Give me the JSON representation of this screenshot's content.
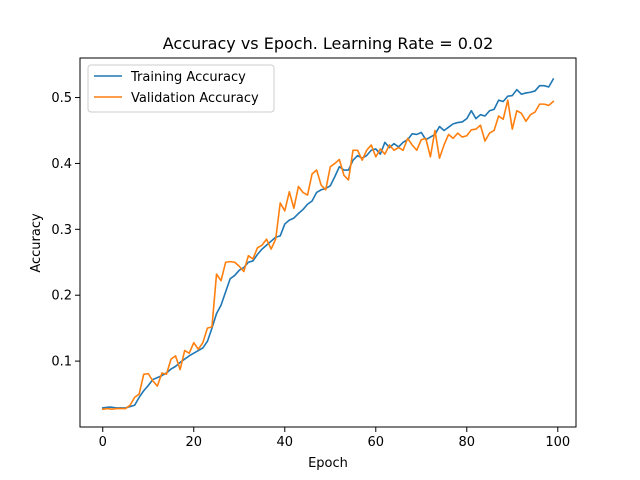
{
  "chart_data": {
    "type": "line",
    "title": "Accuracy vs Epoch. Learning Rate = 0.02",
    "xlabel": "Epoch",
    "ylabel": "Accuracy",
    "xlim": [
      -5,
      104
    ],
    "ylim": [
      0.0,
      0.56
    ],
    "xticks": [
      0,
      20,
      40,
      60,
      80,
      100
    ],
    "xtick_labels": [
      "0",
      "20",
      "40",
      "60",
      "80",
      "100"
    ],
    "yticks": [
      0.1,
      0.2,
      0.3,
      0.4,
      0.5
    ],
    "ytick_labels": [
      "0.1",
      "0.2",
      "0.3",
      "0.4",
      "0.5"
    ],
    "grid": false,
    "legend_position": "top-left",
    "x": [
      0,
      1,
      2,
      3,
      4,
      5,
      6,
      7,
      8,
      9,
      10,
      11,
      12,
      13,
      14,
      15,
      16,
      17,
      18,
      19,
      20,
      21,
      22,
      23,
      24,
      25,
      26,
      27,
      28,
      29,
      30,
      31,
      32,
      33,
      34,
      35,
      36,
      37,
      38,
      39,
      40,
      41,
      42,
      43,
      44,
      45,
      46,
      47,
      48,
      49,
      50,
      51,
      52,
      53,
      54,
      55,
      56,
      57,
      58,
      59,
      60,
      61,
      62,
      63,
      64,
      65,
      66,
      67,
      68,
      69,
      70,
      71,
      72,
      73,
      74,
      75,
      76,
      77,
      78,
      79,
      80,
      81,
      82,
      83,
      84,
      85,
      86,
      87,
      88,
      89,
      90,
      91,
      92,
      93,
      94,
      95,
      96,
      97,
      98,
      99
    ],
    "series": [
      {
        "name": "Training Accuracy",
        "color": "#1f77b4",
        "values": [
          0.029,
          0.03,
          0.03,
          0.029,
          0.029,
          0.029,
          0.031,
          0.033,
          0.045,
          0.055,
          0.063,
          0.072,
          0.075,
          0.078,
          0.082,
          0.088,
          0.092,
          0.098,
          0.103,
          0.108,
          0.112,
          0.116,
          0.12,
          0.13,
          0.15,
          0.172,
          0.185,
          0.205,
          0.225,
          0.23,
          0.238,
          0.242,
          0.25,
          0.252,
          0.262,
          0.27,
          0.276,
          0.282,
          0.288,
          0.29,
          0.308,
          0.314,
          0.317,
          0.324,
          0.33,
          0.338,
          0.343,
          0.356,
          0.36,
          0.362,
          0.366,
          0.38,
          0.395,
          0.39,
          0.39,
          0.405,
          0.412,
          0.408,
          0.412,
          0.42,
          0.422,
          0.414,
          0.432,
          0.424,
          0.43,
          0.425,
          0.432,
          0.436,
          0.445,
          0.444,
          0.447,
          0.436,
          0.44,
          0.444,
          0.456,
          0.45,
          0.455,
          0.46,
          0.462,
          0.463,
          0.468,
          0.48,
          0.468,
          0.474,
          0.472,
          0.48,
          0.482,
          0.496,
          0.494,
          0.502,
          0.503,
          0.512,
          0.505,
          0.507,
          0.508,
          0.51,
          0.518,
          0.518,
          0.516,
          0.528
        ]
      },
      {
        "name": "Validation Accuracy",
        "color": "#ff7f0e",
        "values": [
          0.027,
          0.028,
          0.027,
          0.028,
          0.028,
          0.028,
          0.033,
          0.045,
          0.05,
          0.08,
          0.081,
          0.07,
          0.062,
          0.082,
          0.08,
          0.103,
          0.108,
          0.087,
          0.116,
          0.112,
          0.128,
          0.118,
          0.128,
          0.15,
          0.152,
          0.232,
          0.222,
          0.25,
          0.251,
          0.25,
          0.244,
          0.236,
          0.26,
          0.255,
          0.272,
          0.276,
          0.285,
          0.27,
          0.285,
          0.34,
          0.328,
          0.357,
          0.332,
          0.365,
          0.356,
          0.352,
          0.384,
          0.39,
          0.367,
          0.36,
          0.395,
          0.4,
          0.406,
          0.382,
          0.375,
          0.42,
          0.42,
          0.405,
          0.42,
          0.428,
          0.41,
          0.422,
          0.414,
          0.428,
          0.42,
          0.424,
          0.42,
          0.438,
          0.428,
          0.42,
          0.436,
          0.438,
          0.41,
          0.45,
          0.408,
          0.428,
          0.444,
          0.438,
          0.446,
          0.44,
          0.442,
          0.451,
          0.452,
          0.458,
          0.434,
          0.446,
          0.45,
          0.472,
          0.467,
          0.496,
          0.452,
          0.48,
          0.476,
          0.464,
          0.474,
          0.478,
          0.49,
          0.49,
          0.488,
          0.494
        ]
      }
    ]
  }
}
